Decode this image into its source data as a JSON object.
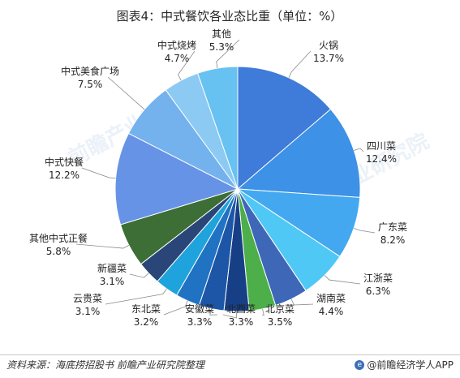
{
  "chart_data": {
    "type": "pie",
    "title": "图表4：中式餐饮各业态比重（单位：%）",
    "slices": [
      {
        "name": "火锅",
        "value": 13.7,
        "label": "13.7%",
        "color": "#3f7bd8"
      },
      {
        "name": "四川菜",
        "value": 12.4,
        "label": "12.4%",
        "color": "#3d91e6"
      },
      {
        "name": "广东菜",
        "value": 8.2,
        "label": "8.2%",
        "color": "#43a8f0"
      },
      {
        "name": "江浙菜",
        "value": 6.3,
        "label": "6.3%",
        "color": "#4fc8f5"
      },
      {
        "name": "湖南菜",
        "value": 4.4,
        "label": "4.4%",
        "color": "#3f67b8"
      },
      {
        "name": "北京菜",
        "value": 3.5,
        "label": "3.5%",
        "color": "#4caf4a"
      },
      {
        "name": "北西菜",
        "value": 3.3,
        "label": "3.3%",
        "color": "#173f86"
      },
      {
        "name": "安徽菜",
        "value": 3.3,
        "label": "3.3%",
        "color": "#1d56a6"
      },
      {
        "name": "东北菜",
        "value": 3.2,
        "label": "3.2%",
        "color": "#2072c3"
      },
      {
        "name": "云贵菜",
        "value": 3.1,
        "label": "3.1%",
        "color": "#1ea3dc"
      },
      {
        "name": "新疆菜",
        "value": 3.1,
        "label": "3.1%",
        "color": "#2a4679"
      },
      {
        "name": "其他中式正餐",
        "value": 5.8,
        "label": "5.8%",
        "color": "#3c6e35"
      },
      {
        "name": "中式快餐",
        "value": 12.2,
        "label": "12.2%",
        "color": "#6693e6"
      },
      {
        "name": "中式美食广场",
        "value": 7.5,
        "label": "7.5%",
        "color": "#74b2ee"
      },
      {
        "name": "中式烧烤",
        "value": 4.7,
        "label": "4.7%",
        "color": "#8ccaf3"
      },
      {
        "name": "其他",
        "value": 5.3,
        "label": "5.3%",
        "color": "#67c2f2"
      }
    ]
  },
  "footer": {
    "source": "资料来源：海底捞招股书 前瞻产业研究院整理",
    "brand": "@前瞻经济学人APP",
    "brand_icon": "qianzhan-logo-icon"
  },
  "watermark": "前瞻产业研究院"
}
